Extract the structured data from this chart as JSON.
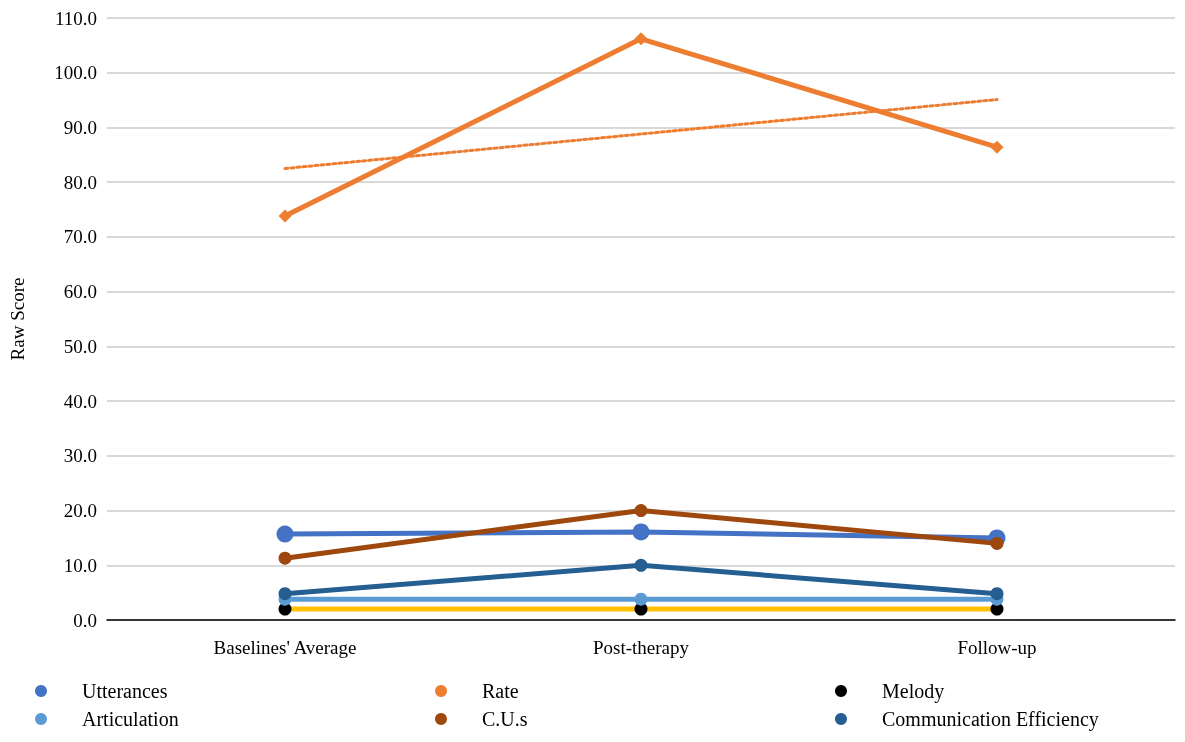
{
  "chart_data": {
    "type": "line",
    "ylabel": "Raw Score",
    "categories": [
      "Baselines' Average",
      "Post-therapy",
      "Follow-up"
    ],
    "ylim": [
      0,
      110
    ],
    "yticks": [
      {
        "value": 0,
        "label": "0.0"
      },
      {
        "value": 10,
        "label": "10.0"
      },
      {
        "value": 20,
        "label": "20.0"
      },
      {
        "value": 30,
        "label": "30.0"
      },
      {
        "value": 40,
        "label": "40.0"
      },
      {
        "value": 50,
        "label": "50.0"
      },
      {
        "value": 60,
        "label": "60.0"
      },
      {
        "value": 70,
        "label": "70.0"
      },
      {
        "value": 80,
        "label": "80.0"
      },
      {
        "value": 90,
        "label": "90.0"
      },
      {
        "value": 100,
        "label": "100.0"
      },
      {
        "value": 110,
        "label": "110.0"
      }
    ],
    "grid": "y",
    "legend": "bottom",
    "marker": "circle",
    "line_style": "solid",
    "series": [
      {
        "name": "Utterances",
        "color": "#4472c4",
        "values": [
          15.7,
          16.1,
          15.0
        ]
      },
      {
        "name": "Rate",
        "color": "#ed7d31",
        "marker": "diamond",
        "values": [
          73.8,
          106.2,
          86.4
        ]
      },
      {
        "name": "Melody",
        "color": "#ffc000",
        "colors": [
          "#000000",
          "#000000",
          "#000000"
        ],
        "values": [
          2.0,
          2.0,
          2.0
        ]
      },
      {
        "name": "Articulation",
        "color": "#5b9bd5",
        "values": [
          3.8,
          3.8,
          3.8
        ]
      },
      {
        "name": "C.U.s",
        "color": "#9e480e",
        "values": [
          11.3,
          20.0,
          14.0
        ]
      },
      {
        "name": "Communication Efficiency",
        "color": "#255e91",
        "values": [
          4.8,
          10.0,
          4.8
        ]
      },
      {
        "color": "#ed7d31",
        "marker": "none",
        "line_style": "dotted",
        "x": [
          "Baselines' Average",
          "Follow-up"
        ],
        "values": [
          82.5,
          95.1
        ]
      }
    ]
  }
}
